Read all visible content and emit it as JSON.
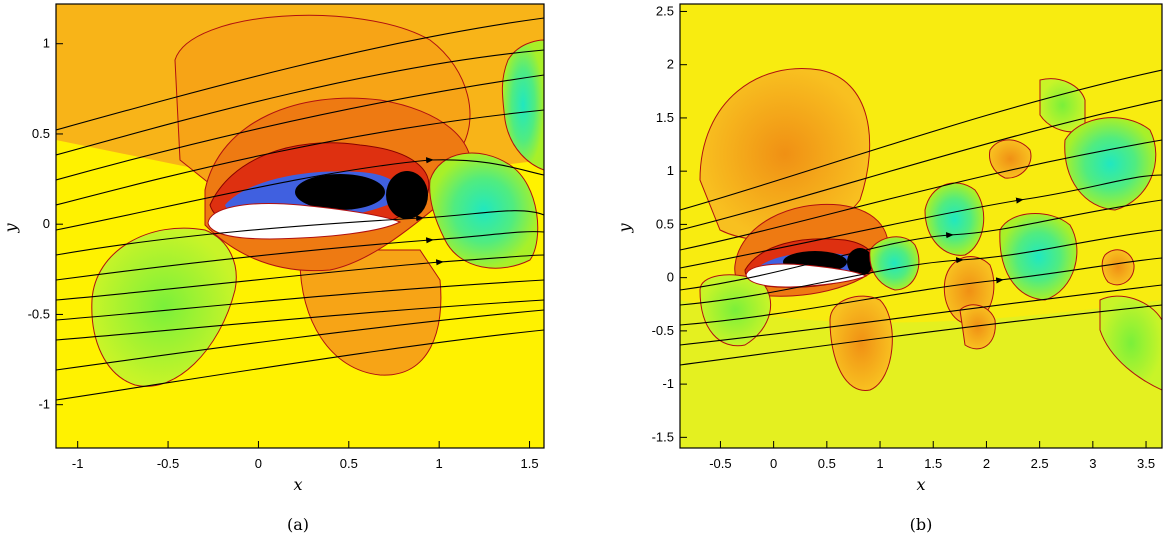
{
  "chart_data": [
    {
      "type": "contour",
      "panel_label": "(a)",
      "xlabel": "x",
      "ylabel": "y",
      "xlim": [
        -1.12,
        1.58
      ],
      "ylim": [
        -1.24,
        1.22
      ],
      "x_ticks": [
        -1,
        -0.5,
        0,
        0.5,
        1,
        1.5
      ],
      "y_ticks": [
        -1,
        -0.5,
        0,
        0.5,
        1
      ],
      "x_tick_labels": [
        "-1",
        "-0.5",
        "0",
        "0.5",
        "1",
        "1.5"
      ],
      "y_tick_labels": [
        "-1",
        "-0.5",
        "0",
        "0.5",
        "1"
      ]
    },
    {
      "type": "contour",
      "panel_label": "(b)",
      "xlabel": "x",
      "ylabel": "y",
      "xlim": [
        -0.88,
        3.65
      ],
      "ylim": [
        -1.6,
        2.57
      ],
      "x_ticks": [
        -0.5,
        0,
        0.5,
        1,
        1.5,
        2,
        2.5,
        3,
        3.5
      ],
      "y_ticks": [
        -1.5,
        -1,
        -0.5,
        0,
        0.5,
        1,
        1.5,
        2,
        2.5
      ],
      "x_tick_labels": [
        "-0.5",
        "0",
        "0.5",
        "1",
        "1.5",
        "2",
        "2.5",
        "3",
        "3.5"
      ],
      "y_tick_labels": [
        "-1.5",
        "-1",
        "-0.5",
        "0",
        "0.5",
        "1",
        "1.5",
        "2",
        "2.5"
      ]
    }
  ],
  "colors": {
    "background_field": "#fff200",
    "orange": "#f8b418",
    "orange_dark": "#ee7a12",
    "red": "#de3010",
    "green": "#a8f028",
    "cyan": "#30e8b0",
    "blue": "#4060e0",
    "black": "#000000",
    "airfoil": "#ffffff",
    "streamline": "#000000",
    "contour_line": "#b01010"
  }
}
